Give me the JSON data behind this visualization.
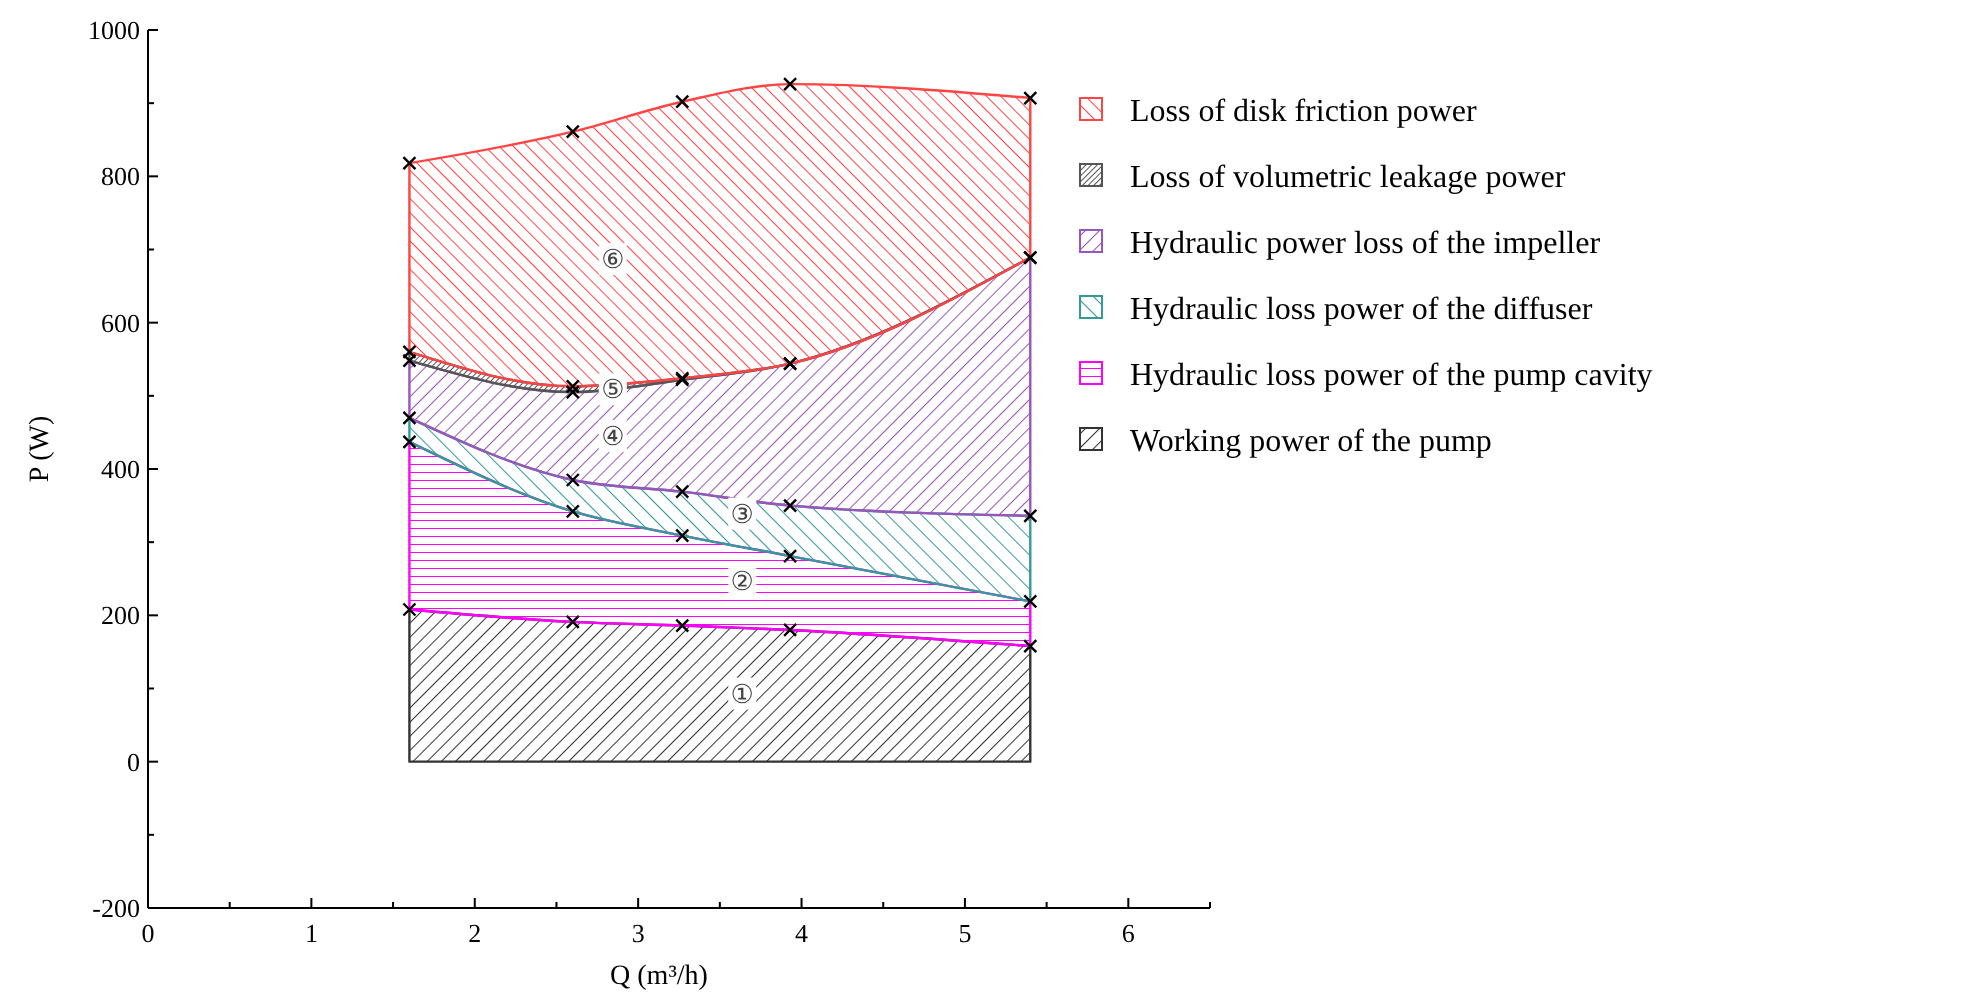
{
  "chart_data": {
    "type": "area",
    "stacked": true,
    "xlabel": "Q (m³/h)",
    "ylabel": "P (W)",
    "x": [
      1.6,
      2.6,
      3.27,
      3.93,
      5.4
    ],
    "series": [
      {
        "name": "Working power of the pump",
        "color": "#333333",
        "values": [
          208,
          191,
          186,
          180,
          158
        ]
      },
      {
        "name": "Hydraulic loss power of the pump cavity",
        "color": "#ff00ff",
        "values": [
          229,
          151,
          123,
          101,
          61
        ]
      },
      {
        "name": "Hydraulic loss power of the diffuser",
        "color": "#339999",
        "values": [
          33,
          43,
          60,
          69,
          117
        ]
      },
      {
        "name": "Hydraulic power loss of the impeller",
        "color": "#9955bb",
        "values": [
          78,
          120,
          153,
          194,
          353
        ]
      },
      {
        "name": "Loss of volumetric leakage power",
        "color": "#555555",
        "values": [
          12,
          8,
          2,
          0,
          0
        ]
      },
      {
        "name": "Loss of disk friction power",
        "color": "#ff4444",
        "values": [
          258,
          348,
          378,
          382,
          218
        ]
      }
    ],
    "xlim": [
      0,
      6.5
    ],
    "xticks": [
      0,
      {
        "value": 0.5,
        "label": null
      },
      1,
      {
        "value": 1.5,
        "label": null
      },
      2,
      {
        "value": 2.5,
        "label": null
      },
      3,
      {
        "value": 3.5,
        "label": null
      },
      4,
      {
        "value": 4.5,
        "label": null
      },
      5,
      {
        "value": 5.5,
        "label": null
      },
      6,
      {
        "value": 6.5,
        "label": null
      }
    ],
    "ylim": [
      -200,
      1000
    ],
    "yticks": [
      -200,
      {
        "value": -100,
        "label": null
      },
      0,
      {
        "value": 100,
        "label": null
      },
      200,
      {
        "value": 300,
        "label": null
      },
      400,
      {
        "value": 500,
        "label": null
      },
      600,
      {
        "value": 700,
        "label": null
      },
      800,
      {
        "value": 900,
        "label": null
      },
      1000
    ],
    "marker": "cross",
    "legend": "right",
    "grid": false,
    "annotations": [
      "①",
      "②",
      "③",
      "④",
      "⑤",
      "⑥"
    ]
  }
}
